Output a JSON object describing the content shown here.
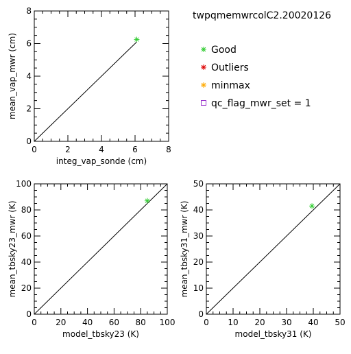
{
  "header": {
    "title": "twpqmemwrcolC2.20020126"
  },
  "legend": {
    "items": [
      {
        "label": "Good",
        "color": "#33cc33",
        "marker": "asterisk"
      },
      {
        "label": "Outliers",
        "color": "#dd0000",
        "marker": "asterisk"
      },
      {
        "label": "minmax",
        "color": "#ffaa00",
        "marker": "asterisk"
      },
      {
        "label": "qc_flag_mwr_set = 1",
        "color": "#9933cc",
        "marker": "square"
      }
    ]
  },
  "chart_data": [
    {
      "type": "scatter",
      "xlabel": "integ_vap_sonde (cm)",
      "ylabel": "mean_vap_mwr (cm)",
      "xlim": [
        0,
        8
      ],
      "ylim": [
        0,
        8
      ],
      "xticks": [
        "0",
        "2",
        "4",
        "6",
        "8"
      ],
      "yticks": [
        "0",
        "2",
        "4",
        "6",
        "8"
      ],
      "reference_line": [
        [
          0,
          0
        ],
        [
          6.1,
          6.1
        ]
      ],
      "series": [
        {
          "name": "Good",
          "points": [
            [
              6.1,
              6.25
            ]
          ]
        }
      ]
    },
    {
      "type": "scatter",
      "xlabel": "model_tbsky23 (K)",
      "ylabel": "mean_tbsky23_mwr (K)",
      "xlim": [
        0,
        100
      ],
      "ylim": [
        0,
        100
      ],
      "xticks": [
        "0",
        "20",
        "40",
        "60",
        "80",
        "100"
      ],
      "yticks": [
        "0",
        "20",
        "40",
        "60",
        "80",
        "100"
      ],
      "reference_line": [
        [
          0,
          0
        ],
        [
          100,
          100
        ]
      ],
      "series": [
        {
          "name": "Good",
          "points": [
            [
              85,
              87
            ]
          ]
        }
      ]
    },
    {
      "type": "scatter",
      "xlabel": "model_tbsky31 (K)",
      "ylabel": "mean_tbsky31_mwr (K)",
      "xlim": [
        0,
        50
      ],
      "ylim": [
        0,
        50
      ],
      "xticks": [
        "0",
        "10",
        "20",
        "30",
        "40",
        "50"
      ],
      "yticks": [
        "0",
        "10",
        "20",
        "30",
        "40",
        "50"
      ],
      "reference_line": [
        [
          0,
          0
        ],
        [
          50,
          50
        ]
      ],
      "series": [
        {
          "name": "Good",
          "points": [
            [
              39.5,
              41.5
            ]
          ]
        }
      ]
    }
  ]
}
